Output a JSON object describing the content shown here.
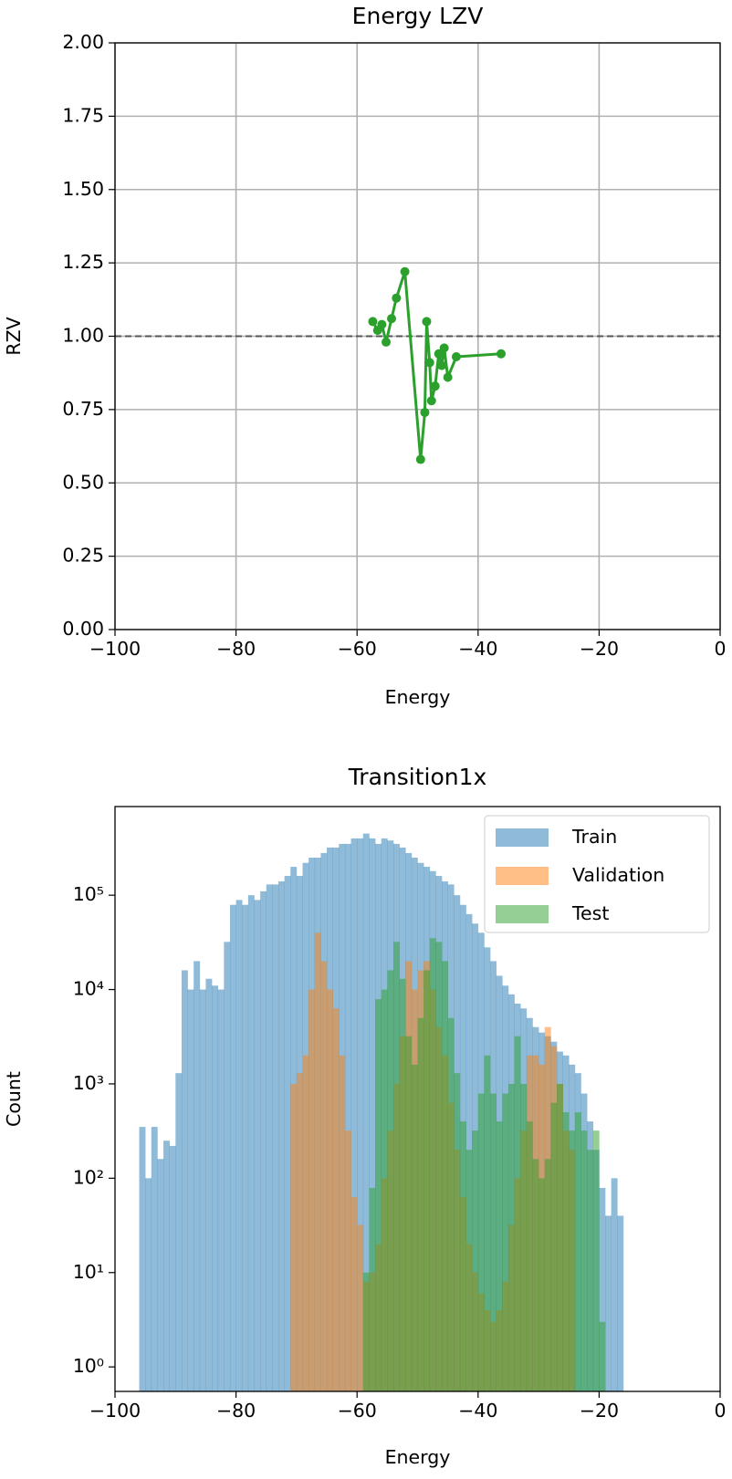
{
  "chart_data": [
    {
      "type": "line",
      "title": "Energy LZV",
      "x_label": "Energy",
      "y_label": "RZV",
      "series": [
        {
          "name": "LZV",
          "color": "#2ca02c",
          "x": [
            -57.4,
            -56.6,
            -55.9,
            -55.2,
            -54.3,
            -53.5,
            -52.1,
            -49.5,
            -48.8,
            -48.5,
            -48.0,
            -47.7,
            -47.1,
            -46.5,
            -46.0,
            -45.6,
            -45.0,
            -43.6,
            -36.2
          ],
          "values": [
            1.05,
            1.02,
            1.04,
            0.98,
            1.06,
            1.13,
            1.22,
            0.58,
            0.74,
            1.05,
            0.91,
            0.78,
            0.83,
            0.94,
            0.9,
            0.96,
            0.86,
            0.93,
            0.94
          ]
        }
      ],
      "hline": 1,
      "xlim": [
        -100,
        0
      ],
      "ylim": [
        0,
        2
      ],
      "xticks": [
        {
          "value": -100,
          "label": "−100"
        },
        {
          "value": -80,
          "label": "−80"
        },
        {
          "value": -60,
          "label": "−60"
        },
        {
          "value": -40,
          "label": "−40"
        },
        {
          "value": -20,
          "label": "−20"
        },
        0
      ],
      "yticks": [
        {
          "value": 0,
          "label": "0.00"
        },
        {
          "value": 0.25,
          "label": "0.25"
        },
        {
          "value": 0.5,
          "label": "0.50"
        },
        {
          "value": 0.75,
          "label": "0.75"
        },
        {
          "value": 1,
          "label": "1.00"
        },
        {
          "value": 1.25,
          "label": "1.25"
        },
        {
          "value": 1.5,
          "label": "1.50"
        },
        {
          "value": 1.75,
          "label": "1.75"
        },
        {
          "value": 2,
          "label": "2.00"
        }
      ],
      "grid": true
    },
    {
      "type": "histogram",
      "title": "Transition1x",
      "x_label": "Energy",
      "y_label": "Count",
      "log_y": true,
      "legend": "upper right",
      "series": [
        {
          "name": "Train",
          "color": "#1f77b4",
          "bins": [
            -96,
            -95,
            -94,
            -93,
            -92,
            -91,
            -90,
            -89,
            -88,
            -87,
            -86,
            -85,
            -84,
            -83,
            -82,
            -81,
            -80,
            -79,
            -78,
            -77,
            -76,
            -75,
            -74,
            -73,
            -72,
            -71,
            -70,
            -69,
            -68,
            -67,
            -66,
            -65,
            -64,
            -63,
            -62,
            -61,
            -60,
            -59,
            -58,
            -57,
            -56,
            -55,
            -54,
            -53,
            -52,
            -51,
            -50,
            -49,
            -48,
            -47,
            -46,
            -45,
            -44,
            -43,
            -42,
            -41,
            -40,
            -39,
            -38,
            -37,
            -36,
            -35,
            -34,
            -33,
            -32,
            -31,
            -30,
            -29,
            -28,
            -27,
            -26,
            -25,
            -24,
            -23,
            -22,
            -21,
            -20,
            -19,
            -18,
            -17,
            -16
          ],
          "values": [
            350,
            100,
            350,
            160,
            250,
            220,
            1300,
            16000,
            10000,
            20000,
            10000,
            13000,
            11000,
            10000,
            32000,
            79000,
            89000,
            79000,
            100000,
            89000,
            110000,
            130000,
            130000,
            140000,
            160000,
            200000,
            160000,
            220000,
            250000,
            250000,
            280000,
            320000,
            320000,
            350000,
            350000,
            400000,
            400000,
            450000,
            400000,
            350000,
            400000,
            380000,
            350000,
            320000,
            280000,
            250000,
            220000,
            200000,
            180000,
            160000,
            140000,
            130000,
            100000,
            79000,
            63000,
            50000,
            40000,
            28000,
            20000,
            14000,
            11000,
            8900,
            7100,
            6300,
            5000,
            4000,
            3500,
            3200,
            2800,
            2200,
            2000,
            1600,
            1300,
            790,
            400,
            200,
            79,
            40,
            100,
            40
          ]
        },
        {
          "name": "Validation",
          "color": "#ff7f0e",
          "bins": [
            -71,
            -70,
            -69,
            -68,
            -67,
            -66,
            -65,
            -64,
            -63,
            -62,
            -61,
            -60,
            -59,
            -58,
            -57,
            -56,
            -55,
            -54,
            -53,
            -52,
            -51,
            -50,
            -49,
            -48,
            -47,
            -46,
            -45,
            -44,
            -43,
            -42,
            -41,
            -40,
            -39,
            -38,
            -37,
            -36,
            -35,
            -34,
            -33,
            -32,
            -31,
            -30,
            -29,
            -28,
            -27,
            -26,
            -25,
            -24
          ],
          "values": [
            1000,
            1300,
            2000,
            10000,
            40000,
            20000,
            10000,
            6300,
            2000,
            320,
            63,
            32,
            8,
            10,
            20,
            100,
            320,
            1000,
            3200,
            20000,
            10000,
            16000,
            20000,
            10000,
            4000,
            2000,
            630,
            200,
            63,
            20,
            10,
            6,
            4,
            3,
            4,
            8,
            32,
            100,
            320,
            2000,
            2000,
            1600,
            4000,
            2500,
            1000,
            320,
            200
          ]
        },
        {
          "name": "Test",
          "color": "#2ca02c",
          "bins": [
            -59,
            -58,
            -57,
            -56,
            -55,
            -54,
            -53,
            -52,
            -51,
            -50,
            -49,
            -48,
            -47,
            -46,
            -45,
            -44,
            -43,
            -42,
            -41,
            -40,
            -39,
            -38,
            -37,
            -36,
            -35,
            -34,
            -33,
            -32,
            -31,
            -30,
            -29,
            -28,
            -27,
            -26,
            -25,
            -24,
            -23,
            -22,
            -21,
            -20,
            -19
          ],
          "values": [
            10,
            79,
            7900,
            10000,
            16000,
            32000,
            13000,
            3200,
            1600,
            5000,
            16000,
            35000,
            32000,
            20000,
            5000,
            1300,
            400,
            200,
            320,
            790,
            2000,
            790,
            400,
            790,
            1000,
            3200,
            1000,
            400,
            160,
            100,
            160,
            630,
            1000,
            500,
            320,
            500,
            320,
            200,
            320,
            3
          ]
        }
      ],
      "xlim": [
        -100,
        0
      ],
      "ylim": [
        0.55,
        870000
      ],
      "xticks": [
        {
          "value": -100,
          "label": "−100"
        },
        {
          "value": -80,
          "label": "−80"
        },
        {
          "value": -60,
          "label": "−60"
        },
        {
          "value": -40,
          "label": "−40"
        },
        {
          "value": -20,
          "label": "−20"
        },
        0
      ],
      "yticks": [
        {
          "value": 1,
          "label": "10⁰"
        },
        {
          "value": 10,
          "label": "10¹"
        },
        {
          "value": 100,
          "label": "10²"
        },
        {
          "value": 1000,
          "label": "10³"
        },
        {
          "value": 10000,
          "label": "10⁴"
        },
        {
          "value": 100000,
          "label": "10⁵"
        }
      ],
      "grid": false
    }
  ]
}
